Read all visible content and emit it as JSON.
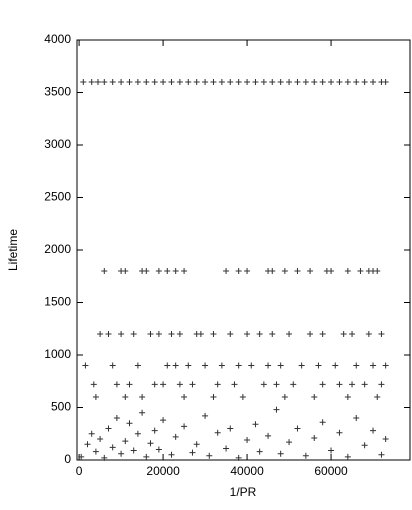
{
  "chart_data": {
    "type": "scatter",
    "xlabel": "1/PR",
    "ylabel": "Lifetime",
    "color": "#333333",
    "xlim": [
      -500,
      78800
    ],
    "ylim": [
      0,
      4000
    ],
    "xticks": [
      0,
      20000,
      40000,
      60000
    ],
    "yticks": [
      0,
      500,
      1000,
      1500,
      2000,
      2500,
      3000,
      3500,
      4000
    ],
    "x": [
      1000,
      3000,
      4500,
      6000,
      8000,
      10000,
      12000,
      14000,
      16000,
      18000,
      20000,
      22000,
      24000,
      26000,
      28000,
      30000,
      32000,
      34000,
      36000,
      38000,
      40000,
      42000,
      44000,
      46000,
      48000,
      50000,
      52000,
      54000,
      56000,
      58000,
      60000,
      62000,
      64000,
      66000,
      68000,
      70000,
      72000,
      73000,
      6000,
      10000,
      11000,
      15000,
      16000,
      19000,
      21000,
      23000,
      25000,
      35000,
      38000,
      40000,
      45000,
      46000,
      49000,
      52000,
      55000,
      59000,
      60000,
      64000,
      67000,
      69000,
      70000,
      71000,
      5000,
      7000,
      10000,
      13000,
      17000,
      19000,
      22000,
      24000,
      28000,
      29000,
      32000,
      36000,
      40000,
      43000,
      46000,
      50000,
      55000,
      58000,
      63000,
      65000,
      69000,
      72000,
      1500,
      8000,
      14000,
      21000,
      23000,
      26000,
      30000,
      34000,
      38000,
      41000,
      45000,
      48000,
      53000,
      57000,
      61000,
      66000,
      70000,
      73000,
      3500,
      9000,
      12000,
      18000,
      20000,
      24000,
      27000,
      33000,
      37000,
      44000,
      47000,
      51000,
      58000,
      62000,
      65000,
      68000,
      72000,
      4000,
      11000,
      15000,
      25000,
      32000,
      39000,
      49000,
      56000,
      64000,
      71000,
      500,
      2000,
      3000,
      4000,
      5000,
      6000,
      7000,
      8000,
      9000,
      10000,
      11000,
      12000,
      13000,
      14000,
      15000,
      16000,
      17000,
      18000,
      19000,
      20000,
      22000,
      23000,
      25000,
      27000,
      28000,
      30000,
      31000,
      33000,
      35000,
      36000,
      38000,
      40000,
      42000,
      43000,
      45000,
      47000,
      48000,
      50000,
      52000,
      54000,
      56000,
      58000,
      60000,
      62000,
      64000,
      66000,
      68000,
      70000,
      72000,
      73000
    ],
    "values": [
      3600,
      3600,
      3600,
      3600,
      3600,
      3600,
      3600,
      3600,
      3600,
      3600,
      3600,
      3600,
      3600,
      3600,
      3600,
      3600,
      3600,
      3600,
      3600,
      3600,
      3600,
      3600,
      3600,
      3600,
      3600,
      3600,
      3600,
      3600,
      3600,
      3600,
      3600,
      3600,
      3600,
      3600,
      3600,
      3600,
      3600,
      3600,
      1800,
      1800,
      1800,
      1800,
      1800,
      1800,
      1800,
      1800,
      1800,
      1800,
      1800,
      1800,
      1800,
      1800,
      1800,
      1800,
      1800,
      1800,
      1800,
      1800,
      1800,
      1800,
      1800,
      1800,
      1200,
      1200,
      1200,
      1200,
      1200,
      1200,
      1200,
      1200,
      1200,
      1200,
      1200,
      1200,
      1200,
      1200,
      1200,
      1200,
      1200,
      1200,
      1200,
      1200,
      1200,
      1200,
      900,
      900,
      900,
      900,
      900,
      900,
      900,
      900,
      900,
      900,
      900,
      900,
      900,
      900,
      900,
      900,
      900,
      900,
      720,
      720,
      720,
      720,
      720,
      720,
      720,
      720,
      720,
      720,
      720,
      720,
      720,
      720,
      720,
      720,
      720,
      600,
      600,
      600,
      600,
      600,
      600,
      600,
      600,
      600,
      600,
      30,
      150,
      250,
      80,
      200,
      20,
      300,
      120,
      400,
      60,
      180,
      350,
      90,
      250,
      450,
      30,
      160,
      280,
      100,
      380,
      50,
      220,
      320,
      70,
      150,
      420,
      40,
      260,
      110,
      300,
      20,
      190,
      340,
      80,
      230,
      480,
      60,
      170,
      300,
      40,
      210,
      360,
      90,
      260,
      30,
      400,
      140,
      280,
      50,
      200
    ]
  }
}
